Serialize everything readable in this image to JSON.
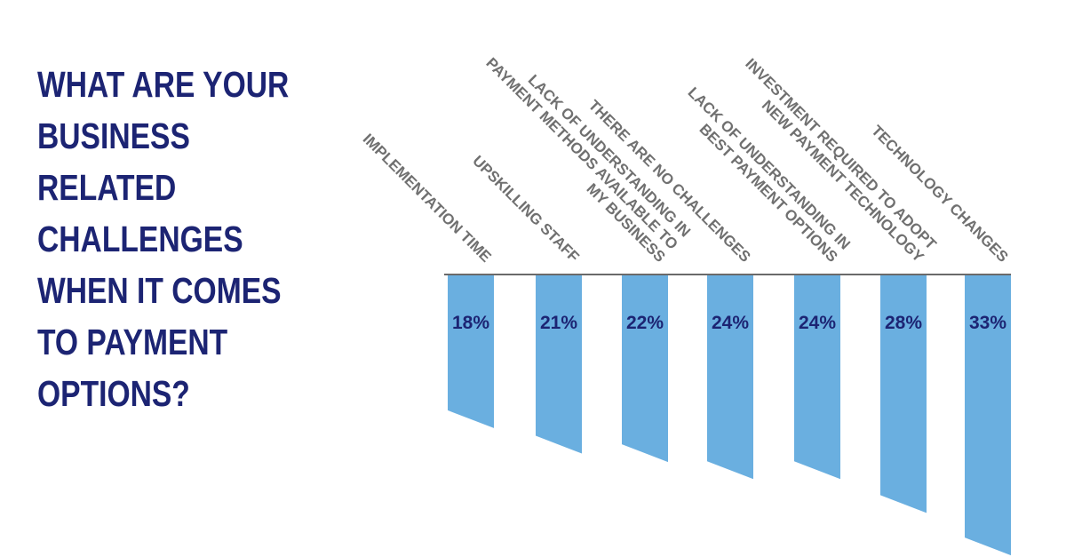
{
  "chart_data": {
    "type": "bar",
    "title": "WHAT ARE YOUR\nBUSINESS\nRELATED\nCHALLENGES\nWHEN IT COMES\nTO PAYMENT\nOPTIONS?",
    "categories": [
      "IMPLEMENTATION TIME",
      "UPSKILLING STAFF",
      "LACK OF UNDERSTANDING IN\nPAYMENT METHODS AVAILABLE TO\nMY BUSINESS",
      "THERE ARE NO CHALLENGES",
      "LACK OF UNDERSTANDING IN\nBEST PAYMENT OPTIONS",
      "INVESTMENT REQUIRED TO ADOPT\nNEW PAYMENT TECHNOLOGY",
      "TECHNOLOGY CHANGES"
    ],
    "values": [
      18,
      21,
      22,
      24,
      24,
      28,
      33
    ],
    "value_labels": [
      "18%",
      "21%",
      "22%",
      "24%",
      "24%",
      "28%",
      "33%"
    ],
    "color": "#6aafe0"
  }
}
